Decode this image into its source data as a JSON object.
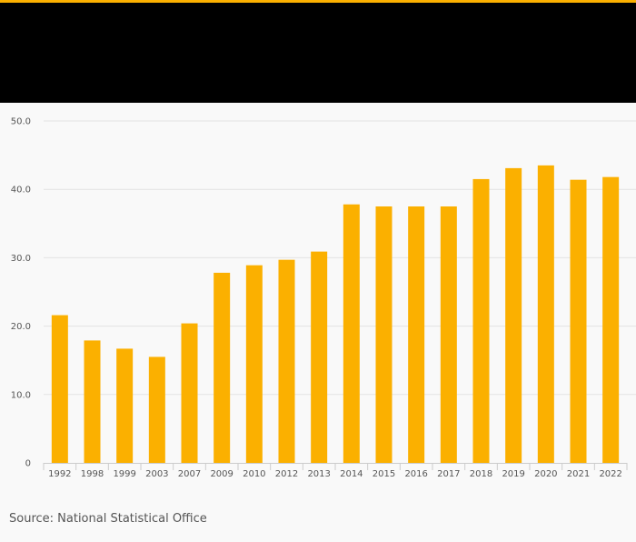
{
  "colors": {
    "bar": "#fbb000",
    "header": "#000000",
    "accent": "#fbb000",
    "grid": "#e3e3e3",
    "background": "#f9f9f9"
  },
  "footer": {
    "source": "Source: National Statistical Office"
  },
  "chart_data": {
    "type": "bar",
    "title": "",
    "xlabel": "",
    "ylabel": "",
    "categories": [
      "1992",
      "1998",
      "1999",
      "2003",
      "2007",
      "2009",
      "2010",
      "2012",
      "2013",
      "2014",
      "2015",
      "2016",
      "2017",
      "2018",
      "2019",
      "2020",
      "2021",
      "2022"
    ],
    "values": [
      21.6,
      17.9,
      16.7,
      15.5,
      20.4,
      27.8,
      28.9,
      29.7,
      30.9,
      37.8,
      37.5,
      37.5,
      37.5,
      41.5,
      43.1,
      43.5,
      41.4,
      41.8
    ],
    "ylim": [
      0,
      50
    ],
    "yticks": [
      0,
      10,
      20,
      30,
      40,
      50
    ],
    "ytick_labels": [
      "0",
      "10.0",
      "20.0",
      "30.0",
      "40.0",
      "50.0"
    ],
    "grid": true,
    "legend": "none"
  }
}
